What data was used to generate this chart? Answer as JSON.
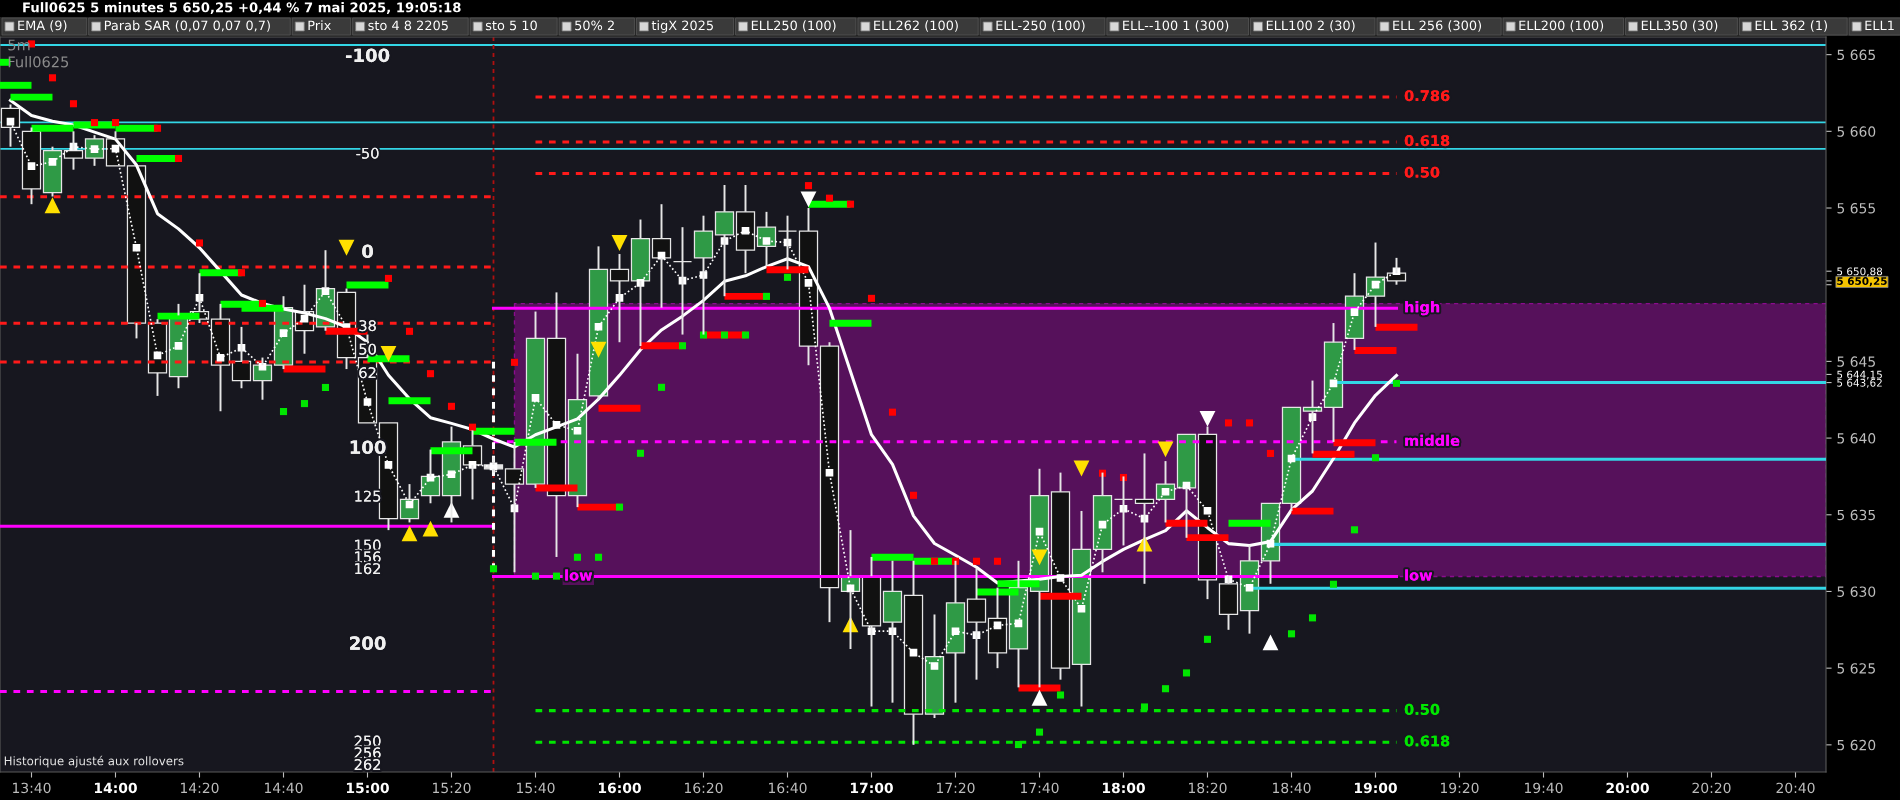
{
  "chart_data": {
    "type": "candlestick",
    "title": "Full0625 5 minutes 5 650,25 +0,44 % 7 mai 2025, 19:05:18",
    "subtitle": "5m\nFull0625",
    "x": [
      13.5833,
      13.6667,
      13.75,
      13.8333,
      13.9167,
      14.0,
      14.0833,
      14.1667,
      14.25,
      14.3333,
      14.4167,
      14.5,
      14.5833,
      14.6667,
      14.75,
      14.8333,
      14.9167,
      15.0,
      15.0833,
      15.1667,
      15.25,
      15.3333,
      15.4167,
      15.5,
      15.5833,
      15.6667,
      15.75,
      15.8333,
      15.9167,
      16.0,
      16.0833,
      16.1667,
      16.25,
      16.3333,
      16.4167,
      16.5,
      16.5833,
      16.6667,
      16.75,
      16.8333,
      16.9167,
      17.0,
      17.0833,
      17.1667,
      17.25,
      17.3333,
      17.4167,
      17.5,
      17.5833,
      17.6667,
      17.75,
      17.8333,
      17.9167,
      18.0,
      18.0833,
      18.1667,
      18.25,
      18.3333,
      18.4167,
      18.5,
      18.5833,
      18.6667,
      18.75,
      18.8333,
      18.9167,
      19.0,
      19.0833
    ],
    "ohlc": [
      [
        5661.5,
        5661.75,
        5659.0,
        5660.25
      ],
      [
        5660.0,
        5660.25,
        5655.25,
        5656.25
      ],
      [
        5656.0,
        5659.0,
        5655.75,
        5658.75
      ],
      [
        5658.75,
        5660.0,
        5657.5,
        5658.25
      ],
      [
        5658.25,
        5659.75,
        5657.75,
        5659.5
      ],
      [
        5659.5,
        5660.0,
        5657.75,
        5657.75
      ],
      [
        5657.75,
        5657.75,
        5646.5,
        5647.5
      ],
      [
        5647.5,
        5647.75,
        5642.75,
        5644.25
      ],
      [
        5644.0,
        5648.75,
        5643.25,
        5648.0
      ],
      [
        5648.25,
        5650.75,
        5647.5,
        5647.75
      ],
      [
        5647.75,
        5648.75,
        5641.75,
        5644.75
      ],
      [
        5645.0,
        5647.25,
        5643.25,
        5643.75
      ],
      [
        5643.75,
        5645.25,
        5642.5,
        5644.75
      ],
      [
        5644.75,
        5649.25,
        5644.5,
        5648.5
      ],
      [
        5648.25,
        5650.0,
        5645.5,
        5647.0
      ],
      [
        5647.25,
        5652.25,
        5647.0,
        5649.75
      ],
      [
        5649.5,
        5649.75,
        5644.5,
        5645.25
      ],
      [
        5645.25,
        5646.75,
        5641.0,
        5641.0
      ],
      [
        5641.0,
        5641.0,
        5634.0,
        5634.75
      ],
      [
        5634.75,
        5637.0,
        5634.5,
        5636.0
      ],
      [
        5636.25,
        5639.25,
        5635.75,
        5637.5
      ],
      [
        5636.25,
        5640.75,
        5634.5,
        5639.75
      ],
      [
        5639.5,
        5640.5,
        5636.0,
        5638.25
      ],
      [
        5638.25,
        5638.75,
        5637.75,
        5638.0
      ],
      [
        5638.0,
        5639.75,
        5631.25,
        5637.0
      ],
      [
        5637.0,
        5648.25,
        5636.75,
        5646.5
      ],
      [
        5646.5,
        5649.5,
        5632.25,
        5636.25
      ],
      [
        5636.25,
        5645.5,
        5635.5,
        5642.5
      ],
      [
        5642.75,
        5652.5,
        5642.5,
        5651.0
      ],
      [
        5651.0,
        5652.0,
        5646.25,
        5650.25
      ],
      [
        5650.25,
        5654.25,
        5646.0,
        5653.0
      ],
      [
        5653.0,
        5655.25,
        5648.5,
        5651.75
      ],
      [
        5651.5,
        5653.75,
        5646.75,
        5651.5
      ],
      [
        5651.75,
        5654.5,
        5646.75,
        5653.5
      ],
      [
        5653.25,
        5656.5,
        5649.25,
        5654.75
      ],
      [
        5654.75,
        5656.5,
        5650.75,
        5652.25
      ],
      [
        5652.5,
        5654.75,
        5651.25,
        5653.75
      ],
      [
        5653.5,
        5654.5,
        5651.0,
        5653.5
      ],
      [
        5653.5,
        5655.0,
        5644.75,
        5646.0
      ],
      [
        5646.0,
        5646.25,
        5628.0,
        5630.25
      ],
      [
        5630.0,
        5634.0,
        5626.25,
        5631.0
      ],
      [
        5631.0,
        5632.25,
        5622.5,
        5627.75
      ],
      [
        5628.0,
        5632.0,
        5622.75,
        5630.0
      ],
      [
        5629.75,
        5632.0,
        5620.0,
        5622.0
      ],
      [
        5622.0,
        5628.5,
        5621.75,
        5625.75
      ],
      [
        5626.0,
        5632.0,
        5622.75,
        5629.25
      ],
      [
        5629.5,
        5631.5,
        5624.25,
        5628.0
      ],
      [
        5628.25,
        5630.25,
        5625.0,
        5626.0
      ],
      [
        5626.25,
        5632.0,
        5623.75,
        5630.25
      ],
      [
        5630.0,
        5638.0,
        5623.75,
        5636.25
      ],
      [
        5636.5,
        5637.75,
        5624.25,
        5625.0
      ],
      [
        5625.25,
        5635.25,
        5622.5,
        5632.75
      ],
      [
        5632.75,
        5637.75,
        5631.25,
        5636.25
      ],
      [
        5636.0,
        5637.5,
        5633.0,
        5636.0
      ],
      [
        5636.0,
        5639.0,
        5630.5,
        5635.75
      ],
      [
        5636.0,
        5638.5,
        5634.5,
        5637.0
      ],
      [
        5636.75,
        5640.25,
        5633.5,
        5640.25
      ],
      [
        5640.25,
        5640.75,
        5629.5,
        5630.75
      ],
      [
        5630.5,
        5631.0,
        5627.5,
        5628.5
      ],
      [
        5628.75,
        5633.0,
        5627.25,
        5632.0
      ],
      [
        5632.0,
        5635.75,
        5630.5,
        5635.75
      ],
      [
        5635.75,
        5642.0,
        5635.25,
        5642.0
      ],
      [
        5641.75,
        5643.75,
        5639.0,
        5642.0
      ],
      [
        5642.0,
        5647.5,
        5639.75,
        5646.25
      ],
      [
        5646.5,
        5650.75,
        5645.75,
        5649.25
      ],
      [
        5649.25,
        5652.75,
        5647.25,
        5650.5
      ],
      [
        5650.75,
        5651.75,
        5650.0,
        5650.25
      ]
    ],
    "colors": [
      "#111111",
      "#111111",
      "#2f9a46",
      "#111111",
      "#2f9a46",
      "#111111",
      "#111111",
      "#111111",
      "#2f9a46",
      "#111111",
      "#111111",
      "#111111",
      "#2f9a46",
      "#2f9a46",
      "#111111",
      "#2f9a46",
      "#111111",
      "#111111",
      "#111111",
      "#2f9a46",
      "#2f9a46",
      "#2f9a46",
      "#111111",
      "#e6e6e6",
      "#111111",
      "#2f9a46",
      "#111111",
      "#2f9a46",
      "#2f9a46",
      "#111111",
      "#2f9a46",
      "#111111",
      "#e6e6e6",
      "#2f9a46",
      "#2f9a46",
      "#111111",
      "#2f9a46",
      "#e6e6e6",
      "#111111",
      "#111111",
      "#2f9a46",
      "#111111",
      "#2f9a46",
      "#111111",
      "#2f9a46",
      "#2f9a46",
      "#111111",
      "#111111",
      "#2f9a46",
      "#2f9a46",
      "#111111",
      "#2f9a46",
      "#2f9a46",
      "#e6e6e6",
      "#111111",
      "#2f9a46",
      "#2f9a46",
      "#111111",
      "#111111",
      "#2f9a46",
      "#2f9a46",
      "#2f9a46",
      "#2f9a46",
      "#2f9a46",
      "#2f9a46",
      "#2f9a46",
      "#111111"
    ],
    "series": [
      {
        "type": "line",
        "color": "#ff1a1a",
        "line_style": "dashed",
        "x": [
          13.5417,
          15.5
        ],
        "values": [
          5655.73,
          5655.73
        ]
      },
      {
        "type": "line",
        "color": "#ff1a1a",
        "line_style": "dashed",
        "x": [
          13.5417,
          15.5
        ],
        "values": [
          5651.15,
          5651.15
        ]
      },
      {
        "type": "line",
        "color": "#ff1a1a",
        "line_style": "dashed",
        "x": [
          13.5417,
          15.5
        ],
        "values": [
          5647.49,
          5647.49
        ]
      },
      {
        "type": "line",
        "color": "#ff1a1a",
        "line_style": "dashed",
        "x": [
          13.5417,
          15.5
        ],
        "values": [
          5644.96,
          5644.96
        ]
      },
      {
        "type": "line",
        "color": "#ff00ff",
        "x": [
          13.5417,
          15.5
        ],
        "values": [
          5634.25,
          5634.25
        ]
      },
      {
        "type": "line",
        "color": "#ff00ff",
        "line_style": "dashed",
        "x": [
          13.5417,
          15.5
        ],
        "values": [
          5623.48,
          5623.48
        ]
      },
      {
        "type": "line",
        "name": "0.786",
        "color": "#ff1a1a",
        "line_style": "dashed",
        "x": [
          15.6667,
          19.0833
        ],
        "values": [
          5662.24,
          5662.24
        ]
      },
      {
        "type": "line",
        "name": "0.618",
        "color": "#ff1a1a",
        "line_style": "dashed",
        "x": [
          15.6667,
          19.0833
        ],
        "values": [
          5659.31,
          5659.31
        ]
      },
      {
        "type": "line",
        "name": "0.50",
        "color": "#ff1a1a",
        "line_style": "dashed",
        "x": [
          15.6667,
          19.0833
        ],
        "values": [
          5657.25,
          5657.25
        ]
      },
      {
        "type": "line",
        "name": "high",
        "color": "#ff00ff",
        "x": [
          15.5,
          19.0833
        ],
        "values": [
          5648.47,
          5648.47
        ]
      },
      {
        "type": "line",
        "name": "middle",
        "color": "#ff00ff",
        "line_style": "dashed",
        "x": [
          15.5,
          15.5833,
          19.0833,
          20.7877
        ],
        "values": [
          5639.76,
          5639.76,
          5639.76,
          null
        ],
        "lower": [
          null,
          5630.98,
          5630.98,
          5630.98
        ],
        "upper": [
          null,
          5648.77,
          5648.77,
          5648.77
        ]
      },
      {
        "type": "line",
        "name": "low",
        "color": "#ff00ff",
        "x": [
          15.5,
          15.75
        ],
        "values": [
          5630.98,
          5630.98
        ]
      },
      {
        "type": "line",
        "name": "low",
        "color": "#ff00ff",
        "x": [
          15.75,
          19.0833
        ],
        "values": [
          5630.98,
          5630.98
        ]
      },
      {
        "type": "line",
        "name": "0.50",
        "color": "#00e600",
        "line_style": "dashed",
        "x": [
          15.6667,
          19.0833
        ],
        "values": [
          5622.23,
          5622.23
        ]
      },
      {
        "type": "line",
        "name": "0.618",
        "color": "#00e600",
        "line_style": "dashed",
        "x": [
          15.6667,
          19.0833
        ],
        "values": [
          5620.17,
          5620.17
        ]
      },
      {
        "type": "line",
        "color": "#33d6e6",
        "x": [
          18.8333,
          20.7877
        ],
        "values": [
          5643.62,
          5643.62
        ]
      },
      {
        "type": "line",
        "color": "#33d6e6",
        "x": [
          18.6667,
          20.7877
        ],
        "values": [
          5638.62,
          5638.62
        ]
      },
      {
        "type": "line",
        "color": "#33d6e6",
        "x": [
          18.5833,
          20.7877
        ],
        "values": [
          5633.07,
          5633.07
        ]
      },
      {
        "type": "line",
        "color": "#33d6e6",
        "x": [
          18.5,
          20.7877
        ],
        "values": [
          5630.21,
          5630.21
        ]
      },
      {
        "type": "line",
        "color": "#ffffff",
        "line_style": "dashed",
        "x": [
          15.5,
          15.5
        ],
        "values": [
          5644.98,
          5631.4
        ]
      },
      {
        "type": "line",
        "color": "#ffffff",
        "values": [
          5662.01,
          5661.03,
          5660.66,
          5660.41,
          5659.95,
          5659.49,
          5657.8,
          5654.63,
          5653.64,
          5652.41,
          5650.87,
          5649.33,
          5648.78,
          5648.41,
          5648.16,
          5647.79,
          5647.24,
          5646.25,
          5644.1,
          5642.56,
          5641.33,
          5640.96,
          5640.56,
          5639.94,
          5639.42,
          5640.22,
          5640.73,
          5641.25,
          5642.54,
          5644.09,
          5645.76,
          5647.05,
          5647.95,
          5648.98,
          5650.22,
          5650.58,
          5651.18,
          5651.69,
          5651.18,
          5648.47,
          5644.34,
          5640.22,
          5638.29,
          5634.93,
          5633.13,
          5632.36,
          5631.58,
          5630.55,
          5630.68,
          5630.8,
          5630.98,
          5631.06,
          5631.96,
          5632.74,
          5633.38,
          5633.97,
          5635.26,
          5634.16,
          5633.12,
          5633.0,
          5633.25,
          5635.32,
          5636.55,
          5638.67,
          5640.99,
          5642.79,
          5644.08
        ]
      },
      {
        "type": "line",
        "color": "#ffffff",
        "marker": "square",
        "line_style": "dotted",
        "values": [
          5660.63,
          5657.73,
          5658.01,
          5659.0,
          5658.84,
          5658.87,
          5652.41,
          5645.39,
          5646.01,
          5649.15,
          5645.24,
          5645.89,
          5644.65,
          5646.84,
          5647.79,
          5649.58,
          5647.24,
          5642.35,
          5638.25,
          5635.67,
          5637.42,
          5637.64,
          5638.25,
          5638.16,
          5635.42,
          5642.62,
          5640.86,
          5640.48,
          5647.26,
          5649.14,
          5650.12,
          5651.9,
          5650.27,
          5650.63,
          5652.85,
          5653.52,
          5652.85,
          5652.75,
          5650.12,
          5637.74,
          5630.2,
          5627.41,
          5627.41,
          5626.01,
          5625.14,
          5627.41,
          5627.15,
          5627.79,
          5627.92,
          5633.9,
          5630.88,
          5628.87,
          5634.36,
          5635.39,
          5634.75,
          5636.5,
          5636.91,
          5635.26,
          5630.8,
          5630.24,
          5633.12,
          5638.67,
          5641.37,
          5643.57,
          5648.21,
          5650.01,
          5650.88
        ]
      },
      {
        "type": "step",
        "color": "#00ff00",
        "x": [
          13.5417,
          13.5833
        ],
        "values": [
          5664.5,
          5664.5
        ]
      },
      {
        "type": "step",
        "color": "#00ff00",
        "x": [
          13.5417,
          13.6667
        ],
        "values": [
          5663.0,
          5663.0
        ]
      },
      {
        "type": "step",
        "color": "#00ff00",
        "x": [
          13.5833,
          13.75
        ],
        "values": [
          5662.23,
          5662.23
        ]
      },
      {
        "type": "step",
        "color": "#00ff00",
        "x": [
          13.6667,
          13.8333
        ],
        "values": [
          5660.2,
          5660.2
        ]
      },
      {
        "type": "step",
        "color": "#00ff00",
        "x": [
          13.8333,
          14.0
        ],
        "values": [
          5660.41,
          5660.41
        ]
      },
      {
        "type": "step",
        "color": "#00ff00",
        "x": [
          14.0,
          14.1667
        ],
        "values": [
          5660.2,
          5660.2
        ]
      },
      {
        "type": "step",
        "color": "#00ff00",
        "x": [
          14.0833,
          14.25
        ],
        "values": [
          5658.23,
          5658.23
        ]
      },
      {
        "type": "step",
        "color": "#00ff00",
        "x": [
          14.1667,
          14.3333
        ],
        "values": [
          5647.95,
          5647.95
        ]
      },
      {
        "type": "step",
        "color": "#00ff00",
        "x": [
          14.3333,
          14.5
        ],
        "values": [
          5650.78,
          5650.78
        ]
      },
      {
        "type": "step",
        "color": "#00ff00",
        "x": [
          14.4167,
          14.5833
        ],
        "values": [
          5648.72,
          5648.72
        ]
      },
      {
        "type": "step",
        "color": "#00ff00",
        "x": [
          14.5,
          14.6667
        ],
        "values": [
          5648.47,
          5648.47
        ]
      },
      {
        "type": "step",
        "color": "#00ff00",
        "x": [
          14.9167,
          15.0833
        ],
        "values": [
          5649.98,
          5649.98
        ]
      },
      {
        "type": "step",
        "color": "#00ff00",
        "x": [
          15.0,
          15.1667
        ],
        "values": [
          5645.17,
          5645.17
        ]
      },
      {
        "type": "step",
        "color": "#00ff00",
        "x": [
          15.0833,
          15.25
        ],
        "values": [
          5642.44,
          5642.44
        ]
      },
      {
        "type": "step",
        "color": "#00ff00",
        "x": [
          15.25,
          15.4167
        ],
        "values": [
          5639.17,
          5639.17
        ]
      },
      {
        "type": "step",
        "color": "#00ff00",
        "x": [
          15.4167,
          15.5833
        ],
        "values": [
          5640.44,
          5640.44
        ]
      },
      {
        "type": "step",
        "color": "#00ff00",
        "x": [
          15.5833,
          15.75
        ],
        "values": [
          5639.73,
          5639.73
        ]
      },
      {
        "type": "step",
        "color": "#00ff00",
        "x": [
          16.75,
          16.9167
        ],
        "values": [
          5655.25,
          5655.25
        ]
      },
      {
        "type": "step",
        "color": "#00ff00",
        "x": [
          16.8333,
          17.0
        ],
        "values": [
          5647.49,
          5647.49
        ]
      },
      {
        "type": "step",
        "color": "#00ff00",
        "x": [
          17.0,
          17.1667
        ],
        "values": [
          5632.23,
          5632.23
        ]
      },
      {
        "type": "step",
        "color": "#00ff00",
        "x": [
          17.1667,
          17.3333
        ],
        "values": [
          5631.97,
          5631.97
        ]
      },
      {
        "type": "step",
        "color": "#00ff00",
        "x": [
          17.4167,
          17.5833
        ],
        "values": [
          5629.96,
          5629.96
        ]
      },
      {
        "type": "step",
        "color": "#00ff00",
        "x": [
          17.5,
          17.6667
        ],
        "values": [
          5630.5,
          5630.5
        ]
      },
      {
        "type": "step",
        "color": "#00ff00",
        "x": [
          18.4167,
          18.5833
        ],
        "values": [
          5634.45,
          5634.45
        ]
      },
      {
        "type": "step",
        "color": "#ff0000",
        "x": [
          14.6667,
          14.8333
        ],
        "values": [
          5644.5,
          5644.5
        ]
      },
      {
        "type": "step",
        "color": "#ff0000",
        "x": [
          14.8333,
          15.0
        ],
        "values": [
          5646.96,
          5646.96
        ]
      },
      {
        "type": "step",
        "color": "#ff0000",
        "x": [
          15.6667,
          15.8333
        ],
        "values": [
          5636.74,
          5636.74
        ]
      },
      {
        "type": "step",
        "color": "#ff0000",
        "x": [
          15.8333,
          16.0
        ],
        "values": [
          5635.5,
          5635.5
        ]
      },
      {
        "type": "step",
        "color": "#ff0000",
        "x": [
          15.9167,
          16.0833
        ],
        "values": [
          5641.95,
          5641.95
        ]
      },
      {
        "type": "step",
        "color": "#ff0000",
        "x": [
          16.0833,
          16.25
        ],
        "values": [
          5646.02,
          5646.02
        ]
      },
      {
        "type": "step",
        "color": "#ff0000",
        "x": [
          16.3333,
          16.5
        ],
        "values": [
          5646.72,
          5646.72
        ]
      },
      {
        "type": "step",
        "color": "#ff0000",
        "x": [
          16.4167,
          16.5833
        ],
        "values": [
          5649.24,
          5649.24
        ]
      },
      {
        "type": "step",
        "color": "#ff0000",
        "x": [
          16.5833,
          16.75
        ],
        "values": [
          5650.97,
          5650.97
        ]
      },
      {
        "type": "step",
        "color": "#ff0000",
        "x": [
          17.5833,
          17.75
        ],
        "values": [
          5623.71,
          5623.71
        ]
      },
      {
        "type": "step",
        "color": "#ff0000",
        "x": [
          17.6667,
          17.8333
        ],
        "values": [
          5629.69,
          5629.69
        ]
      },
      {
        "type": "step",
        "color": "#ff0000",
        "x": [
          18.1667,
          18.3333
        ],
        "values": [
          5634.45,
          5634.45
        ]
      },
      {
        "type": "step",
        "color": "#ff0000",
        "x": [
          18.25,
          18.4167
        ],
        "values": [
          5633.51,
          5633.51
        ]
      },
      {
        "type": "step",
        "color": "#ff0000",
        "x": [
          18.6667,
          18.8333
        ],
        "values": [
          5635.24,
          5635.24
        ]
      },
      {
        "type": "step",
        "color": "#ff0000",
        "x": [
          18.75,
          18.9167
        ],
        "values": [
          5638.95,
          5638.95
        ]
      },
      {
        "type": "step",
        "color": "#ff0000",
        "x": [
          18.8333,
          19.0
        ],
        "values": [
          5639.7,
          5639.7
        ]
      },
      {
        "type": "step",
        "color": "#ff0000",
        "x": [
          18.9167,
          19.0833
        ],
        "values": [
          5645.71,
          5645.71
        ]
      },
      {
        "type": "step",
        "color": "#ff0000",
        "x": [
          19.0,
          19.1667
        ],
        "values": [
          5647.23,
          5647.23
        ]
      },
      {
        "type": "scatter",
        "color": "#00e600",
        "marker": "square",
        "values": [
          null,
          null,
          null,
          null,
          null,
          null,
          null,
          null,
          null,
          null,
          null,
          null,
          null,
          5641.73,
          5642.25,
          5643.3,
          null,
          null,
          null,
          null,
          null,
          null,
          null,
          5631.48,
          null,
          5631.0,
          5631.0,
          5632.23,
          5632.23,
          5635.5,
          5639.01,
          5643.31,
          5646.02,
          5646.72,
          5646.72,
          5646.72,
          5649.24,
          5650.48,
          null,
          null,
          null,
          null,
          null,
          null,
          null,
          null,
          null,
          null,
          5620.02,
          5620.83,
          5623.25,
          null,
          null,
          null,
          5622.47,
          5623.66,
          5624.69,
          5626.88,
          null,
          null,
          null,
          5627.24,
          5628.28,
          5630.47,
          5634.02,
          5638.72,
          5643.57
        ]
      },
      {
        "type": "scatter",
        "color": "#ff0000",
        "marker": "square",
        "values": [
          null,
          5665.7,
          5663.49,
          5661.8,
          5660.57,
          5660.57,
          null,
          5660.2,
          5658.23,
          5652.72,
          null,
          5650.78,
          5648.78,
          null,
          null,
          null,
          null,
          null,
          5650.41,
          5646.96,
          5644.2,
          5642.07,
          5640.71,
          null,
          5644.94,
          null,
          null,
          null,
          null,
          null,
          null,
          null,
          null,
          null,
          null,
          null,
          null,
          null,
          5656.46,
          5655.64,
          5655.25,
          5649.11,
          5641.69,
          5636.27,
          5631.97,
          5631.97,
          5631.97,
          5631.97,
          null,
          null,
          null,
          null,
          5637.71,
          5637.43,
          null,
          null,
          null,
          null,
          5640.99,
          5640.99,
          5639.0,
          null,
          null,
          null,
          null,
          null,
          null
        ]
      },
      {
        "type": "scatter",
        "color": "#ffe000",
        "marker": "triangle",
        "x": [
          13.75,
          15.1667,
          15.25,
          16.9167,
          18.0833
        ],
        "values": [
          5655.18,
          5633.79,
          5634.1,
          5627.85,
          5633.12
        ]
      },
      {
        "type": "scatter",
        "color": "#ffe000",
        "marker": "triangle_down",
        "x": [
          14.9167,
          15.0833,
          15.9167,
          16.0,
          17.6667,
          17.8333,
          18.1667
        ],
        "values": [
          5652.41,
          5645.49,
          5645.76,
          5652.72,
          5632.22,
          5638.02,
          5639.26
        ]
      },
      {
        "type": "scatter",
        "color": "#ffffff",
        "marker": "triangle",
        "x": [
          15.3333,
          17.6667,
          18.5833
        ],
        "values": [
          5635.32,
          5623.07,
          5626.68
        ]
      },
      {
        "type": "scatter",
        "color": "#ffffff",
        "marker": "triangle_down",
        "x": [
          16.75,
          18.3333
        ],
        "values": [
          5655.56,
          5641.25
        ]
      }
    ],
    "ref_lines": [
      {
        "axis": "y",
        "value": 5665.63,
        "color": "#33d6e6"
      },
      {
        "axis": "y",
        "value": 5660.58,
        "color": "#33d6e6"
      },
      {
        "axis": "y",
        "value": 5658.85,
        "color": "#33d6e6"
      },
      {
        "axis": "x",
        "value": 15.5,
        "color": "#b01010",
        "line_style": "dashed"
      }
    ],
    "xlim": [
      13.5417,
      20.7877
    ],
    "ylim": [
      5618.23,
      5666.15
    ],
    "y2lim": [
      265.9,
      -109.2
    ],
    "xticks": [
      {
        "value": 13.6667,
        "label": "13:40"
      },
      {
        "value": 14,
        "label": "14:00"
      },
      {
        "value": 14.3333,
        "label": "14:20"
      },
      {
        "value": 14.6667,
        "label": "14:40"
      },
      {
        "value": 15,
        "label": "15:00"
      },
      {
        "value": 15.3333,
        "label": "15:20"
      },
      {
        "value": 15.6667,
        "label": "15:40"
      },
      {
        "value": 16,
        "label": "16:00"
      },
      {
        "value": 16.3333,
        "label": "16:20"
      },
      {
        "value": 16.6667,
        "label": "16:40"
      },
      {
        "value": 17,
        "label": "17:00"
      },
      {
        "value": 17.3333,
        "label": "17:20"
      },
      {
        "value": 17.6667,
        "label": "17:40"
      },
      {
        "value": 18,
        "label": "18:00"
      },
      {
        "value": 18.3333,
        "label": "18:20"
      },
      {
        "value": 18.6667,
        "label": "18:40"
      },
      {
        "value": 19,
        "label": "19:00"
      },
      {
        "value": 19.3333,
        "label": "19:20"
      },
      {
        "value": 19.6667,
        "label": "19:40"
      },
      {
        "value": 20,
        "label": "20:00"
      },
      {
        "value": 20.3333,
        "label": "20:20"
      },
      {
        "value": 20.6667,
        "label": "20:40"
      }
    ],
    "yticks": [
      {
        "value": 5620,
        "label": "5 620"
      },
      {
        "value": 5625,
        "label": "5 625"
      },
      {
        "value": 5630,
        "label": "5 630"
      },
      {
        "value": 5635,
        "label": "5 635"
      },
      {
        "value": 5640,
        "label": "5 640"
      },
      {
        "value": 5643.62,
        "label": "5 643,62"
      },
      {
        "value": 5644.15,
        "label": "5 644,15"
      },
      {
        "value": 5645,
        "label": "5 645"
      },
      {
        "value": 5650,
        "label": null
      },
      {
        "value": 5650.25,
        "label": "5 650,25"
      },
      {
        "value": 5650.88,
        "label": "5 650,88"
      },
      {
        "value": 5655,
        "label": "5 655"
      },
      {
        "value": 5660,
        "label": "5 660"
      },
      {
        "value": 5665,
        "label": "5 665"
      }
    ],
    "y2ticks": [
      -100,
      -50,
      0,
      38,
      50,
      62,
      100,
      125,
      150,
      156,
      162,
      200,
      250,
      256,
      262
    ],
    "annotations": [
      "EMA (9)",
      "Parab SAR (0,07 0,07 0,7)",
      "Prix",
      "sto 4 8 2205",
      "sto 5 10",
      "50% 2",
      "tigX 2025",
      "ELL250 (100)",
      "ELL262 (100)",
      "ELL-250 (100)",
      "ELL--100 1 (300)",
      "ELL100 2 (30)",
      "ELL 256 (300)",
      "ELL200 (100)",
      "ELL350 (30)",
      "ELL 362 (1)",
      "ELL1",
      "Historique ajusté aux rollovers"
    ]
  }
}
